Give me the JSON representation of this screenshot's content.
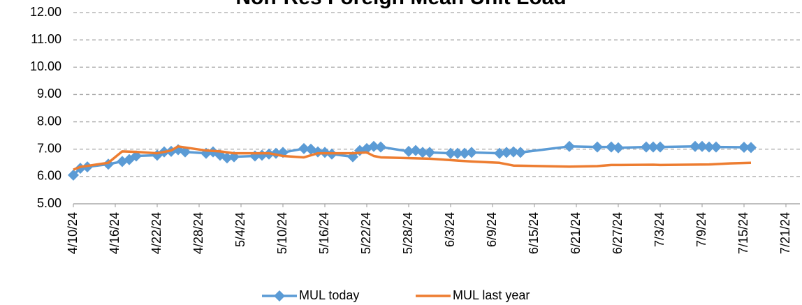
{
  "chart_data": {
    "type": "line",
    "title": "Non-Res Foreign Mean Unit Load",
    "xlim": [
      "4/10/24",
      "7/23/24"
    ],
    "xticks": [
      "4/10/24",
      "4/16/24",
      "4/22/24",
      "4/28/24",
      "5/4/24",
      "5/10/24",
      "5/16/24",
      "5/22/24",
      "5/28/24",
      "6/3/24",
      "6/9/24",
      "6/15/24",
      "6/21/24",
      "6/27/24",
      "7/3/24",
      "7/9/24",
      "7/15/24",
      "7/21/24"
    ],
    "ylim": [
      5,
      12
    ],
    "yticks": [
      {
        "value": 5,
        "label": "5.00"
      },
      {
        "value": 6,
        "label": "6.00"
      },
      {
        "value": 7,
        "label": "7.00"
      },
      {
        "value": 8,
        "label": "8.00"
      },
      {
        "value": 9,
        "label": "9.00"
      },
      {
        "value": 10,
        "label": "10.00"
      },
      {
        "value": 11,
        "label": "11.00"
      },
      {
        "value": 12,
        "label": "12.00"
      }
    ],
    "grid": true,
    "legend": "bottom",
    "series": [
      {
        "name": "MUL today",
        "color": "#5b9bd5",
        "marker": "diamond",
        "x": [
          "4/10/24",
          "4/11/24",
          "4/12/24",
          "4/15/24",
          "4/17/24",
          "4/18/24",
          "4/19/24",
          "4/22/24",
          "4/23/24",
          "4/24/24",
          "4/25/24",
          "4/26/24",
          "4/29/24",
          "4/30/24",
          "5/1/24",
          "5/2/24",
          "5/3/24",
          "5/6/24",
          "5/7/24",
          "5/8/24",
          "5/9/24",
          "5/10/24",
          "5/13/24",
          "5/14/24",
          "5/15/24",
          "5/16/24",
          "5/17/24",
          "5/20/24",
          "5/21/24",
          "5/22/24",
          "5/23/24",
          "5/24/24",
          "5/28/24",
          "5/29/24",
          "5/30/24",
          "5/31/24",
          "6/3/24",
          "6/4/24",
          "6/5/24",
          "6/6/24",
          "6/10/24",
          "6/11/24",
          "6/12/24",
          "6/13/24",
          "6/20/24",
          "6/24/24",
          "6/26/24",
          "6/27/24",
          "7/1/24",
          "7/2/24",
          "7/3/24",
          "7/8/24",
          "7/9/24",
          "7/10/24",
          "7/11/24",
          "7/15/24",
          "7/16/24"
        ],
        "values": [
          6.05,
          6.3,
          6.35,
          6.45,
          6.55,
          6.62,
          6.75,
          6.78,
          6.9,
          6.92,
          6.98,
          6.9,
          6.85,
          6.9,
          6.78,
          6.68,
          6.72,
          6.75,
          6.78,
          6.82,
          6.85,
          6.88,
          7.02,
          7.0,
          6.9,
          6.88,
          6.82,
          6.72,
          6.95,
          7.02,
          7.1,
          7.08,
          6.92,
          6.95,
          6.88,
          6.88,
          6.85,
          6.85,
          6.85,
          6.88,
          6.85,
          6.88,
          6.9,
          6.88,
          7.1,
          7.08,
          7.08,
          7.05,
          7.08,
          7.08,
          7.08,
          7.1,
          7.1,
          7.08,
          7.08,
          7.07,
          7.06
        ]
      },
      {
        "name": "MUL last year",
        "color": "#ed7d31",
        "marker": "none",
        "x": [
          "4/10/24",
          "4/11/24",
          "4/15/24",
          "4/17/24",
          "4/19/24",
          "4/22/24",
          "4/24/24",
          "4/25/24",
          "4/29/24",
          "5/1/24",
          "5/3/24",
          "5/8/24",
          "5/10/24",
          "5/13/24",
          "5/15/24",
          "5/20/24",
          "5/22/24",
          "5/23/24",
          "5/24/24",
          "5/31/24",
          "6/3/24",
          "6/4/24",
          "6/6/24",
          "6/10/24",
          "6/12/24",
          "6/20/24",
          "6/24/24",
          "6/26/24",
          "7/2/24",
          "7/3/24",
          "7/10/24",
          "7/13/24",
          "7/16/24"
        ],
        "values": [
          6.25,
          6.35,
          6.5,
          6.92,
          6.9,
          6.85,
          6.95,
          7.1,
          6.95,
          6.92,
          6.85,
          6.85,
          6.75,
          6.7,
          6.85,
          6.85,
          6.88,
          6.75,
          6.7,
          6.65,
          6.6,
          6.58,
          6.55,
          6.5,
          6.4,
          6.36,
          6.38,
          6.42,
          6.43,
          6.42,
          6.44,
          6.48,
          6.5
        ]
      }
    ]
  }
}
